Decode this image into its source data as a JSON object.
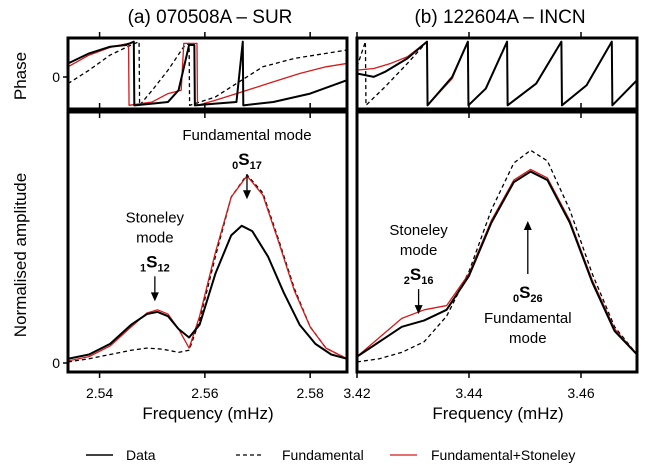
{
  "chart_data": [
    {
      "type": "line",
      "panel_label": "(a)",
      "title": "070508A – SUR",
      "xlabel": "Frequency (mHz)",
      "ylabel": "Normalised amplitude",
      "phase_ylabel": "Phase",
      "xlim": [
        2.534,
        2.587
      ],
      "ylim": [
        0,
        1.18
      ],
      "xticks": [
        "2.54",
        "2.56",
        "2.58"
      ],
      "xtick_values": [
        2.54,
        2.56,
        2.58
      ],
      "ytick_zero": "0",
      "phase_ytick_zero": "0",
      "annotations": [
        {
          "lines": [
            "Stoneley",
            "mode"
          ],
          "mode_pre": "1",
          "mode_base": "S",
          "mode_sub": "12",
          "x": 2.5505,
          "y": 0.29
        },
        {
          "lines": [
            "Fundamental mode"
          ],
          "mode_pre": "0",
          "mode_base": "S",
          "mode_sub": "17",
          "x": 2.568,
          "y": 0.77
        }
      ],
      "amplitude_series": [
        {
          "name": "Data",
          "color": "#000000",
          "style": "solid",
          "points": [
            [
              2.534,
              0.02
            ],
            [
              2.538,
              0.04
            ],
            [
              2.542,
              0.09
            ],
            [
              2.546,
              0.18
            ],
            [
              2.549,
              0.23
            ],
            [
              2.551,
              0.24
            ],
            [
              2.553,
              0.22
            ],
            [
              2.555,
              0.16
            ],
            [
              2.557,
              0.12
            ],
            [
              2.559,
              0.18
            ],
            [
              2.562,
              0.42
            ],
            [
              2.565,
              0.6
            ],
            [
              2.567,
              0.645
            ],
            [
              2.569,
              0.62
            ],
            [
              2.572,
              0.5
            ],
            [
              2.575,
              0.33
            ],
            [
              2.578,
              0.18
            ],
            [
              2.581,
              0.09
            ],
            [
              2.584,
              0.04
            ],
            [
              2.587,
              0.02
            ]
          ]
        },
        {
          "name": "Fundamental",
          "color": "#000000",
          "style": "dashed",
          "points": [
            [
              2.534,
              0.005
            ],
            [
              2.538,
              0.02
            ],
            [
              2.542,
              0.04
            ],
            [
              2.546,
              0.06
            ],
            [
              2.549,
              0.07
            ],
            [
              2.552,
              0.065
            ],
            [
              2.555,
              0.05
            ],
            [
              2.557,
              0.06
            ],
            [
              2.559,
              0.2
            ],
            [
              2.562,
              0.5
            ],
            [
              2.565,
              0.78
            ],
            [
              2.568,
              0.885
            ],
            [
              2.571,
              0.8
            ],
            [
              2.574,
              0.58
            ],
            [
              2.577,
              0.35
            ],
            [
              2.58,
              0.17
            ],
            [
              2.583,
              0.07
            ],
            [
              2.587,
              0.02
            ]
          ]
        },
        {
          "name": "Fundamental+Stoneley",
          "color": "#d61a1a",
          "style": "solid",
          "points": [
            [
              2.534,
              0.01
            ],
            [
              2.538,
              0.03
            ],
            [
              2.542,
              0.08
            ],
            [
              2.546,
              0.17
            ],
            [
              2.549,
              0.235
            ],
            [
              2.551,
              0.25
            ],
            [
              2.553,
              0.23
            ],
            [
              2.555,
              0.16
            ],
            [
              2.557,
              0.07
            ],
            [
              2.559,
              0.22
            ],
            [
              2.562,
              0.52
            ],
            [
              2.565,
              0.78
            ],
            [
              2.568,
              0.88
            ],
            [
              2.571,
              0.79
            ],
            [
              2.574,
              0.57
            ],
            [
              2.577,
              0.34
            ],
            [
              2.58,
              0.17
            ],
            [
              2.583,
              0.07
            ],
            [
              2.587,
              0.02
            ]
          ]
        }
      ],
      "phase_series": [
        {
          "name": "Data",
          "color": "#000000",
          "style": "solid",
          "points": [
            [
              2.534,
              0.3
            ],
            [
              2.538,
              0.6
            ],
            [
              2.542,
              0.8
            ],
            [
              2.545,
              0.85
            ],
            [
              2.5465,
              0.95
            ],
            [
              2.5466,
              -0.95
            ],
            [
              2.55,
              -0.9
            ],
            [
              2.553,
              -0.85
            ],
            [
              2.555,
              -0.5
            ],
            [
              2.557,
              0.85
            ],
            [
              2.558,
              0.85
            ],
            [
              2.5581,
              -0.95
            ],
            [
              2.562,
              -0.9
            ],
            [
              2.566,
              -0.85
            ],
            [
              2.5672,
              0.95
            ],
            [
              2.5673,
              -0.95
            ],
            [
              2.573,
              -0.85
            ],
            [
              2.58,
              -0.6
            ],
            [
              2.587,
              -0.2
            ]
          ]
        },
        {
          "name": "Fundamental",
          "color": "#000000",
          "style": "dashed",
          "points": [
            [
              2.534,
              -0.3
            ],
            [
              2.538,
              0.1
            ],
            [
              2.542,
              0.55
            ],
            [
              2.546,
              0.85
            ],
            [
              2.5475,
              0.95
            ],
            [
              2.5476,
              -0.95
            ],
            [
              2.55,
              -0.5
            ],
            [
              2.553,
              0.1
            ],
            [
              2.556,
              0.8
            ],
            [
              2.557,
              0.9
            ],
            [
              2.5571,
              -0.95
            ],
            [
              2.562,
              -0.7
            ],
            [
              2.566,
              -0.3
            ],
            [
              2.571,
              0.2
            ],
            [
              2.577,
              0.45
            ],
            [
              2.583,
              0.6
            ],
            [
              2.587,
              0.7
            ]
          ]
        },
        {
          "name": "Fundamental+Stoneley",
          "color": "#d61a1a",
          "style": "solid",
          "points": [
            [
              2.534,
              0.2
            ],
            [
              2.538,
              0.55
            ],
            [
              2.542,
              0.78
            ],
            [
              2.5455,
              0.9
            ],
            [
              2.5456,
              -0.95
            ],
            [
              2.55,
              -0.85
            ],
            [
              2.553,
              -0.6
            ],
            [
              2.5555,
              -0.5
            ],
            [
              2.556,
              0.9
            ],
            [
              2.5585,
              0.9
            ],
            [
              2.5586,
              -0.95
            ],
            [
              2.562,
              -0.8
            ],
            [
              2.566,
              -0.6
            ],
            [
              2.572,
              -0.3
            ],
            [
              2.578,
              0.0
            ],
            [
              2.583,
              0.2
            ],
            [
              2.587,
              0.3
            ]
          ]
        }
      ]
    },
    {
      "type": "line",
      "panel_label": "(b)",
      "title": "122604A – INCN",
      "xlabel": "Frequency (mHz)",
      "xlim": [
        3.42,
        3.47
      ],
      "ylim": [
        0,
        1.18
      ],
      "xticks": [
        "3.42",
        "3.44",
        "3.46"
      ],
      "xtick_values": [
        3.42,
        3.44,
        3.46
      ],
      "annotations": [
        {
          "lines": [
            "Stoneley",
            "mode"
          ],
          "mode_pre": "2",
          "mode_base": "S",
          "mode_sub": "16",
          "x": 3.431,
          "y": 0.23
        },
        {
          "lines": [
            "Fundamental",
            "mode"
          ],
          "mode_pre": "0",
          "mode_base": "S",
          "mode_sub": "26",
          "x": 3.4505,
          "y": 0.55
        }
      ],
      "amplitude_series": [
        {
          "name": "Data",
          "color": "#000000",
          "style": "solid",
          "points": [
            [
              3.42,
              0.03
            ],
            [
              3.424,
              0.1
            ],
            [
              3.428,
              0.17
            ],
            [
              3.432,
              0.2
            ],
            [
              3.436,
              0.25
            ],
            [
              3.44,
              0.41
            ],
            [
              3.444,
              0.66
            ],
            [
              3.448,
              0.85
            ],
            [
              3.451,
              0.9
            ],
            [
              3.454,
              0.86
            ],
            [
              3.458,
              0.66
            ],
            [
              3.462,
              0.38
            ],
            [
              3.466,
              0.15
            ],
            [
              3.47,
              0.04
            ]
          ]
        },
        {
          "name": "Fundamental",
          "color": "#000000",
          "style": "dashed",
          "points": [
            [
              3.42,
              0.005
            ],
            [
              3.424,
              0.02
            ],
            [
              3.428,
              0.05
            ],
            [
              3.432,
              0.1
            ],
            [
              3.436,
              0.22
            ],
            [
              3.44,
              0.43
            ],
            [
              3.444,
              0.72
            ],
            [
              3.448,
              0.94
            ],
            [
              3.451,
              1.0
            ],
            [
              3.454,
              0.95
            ],
            [
              3.458,
              0.72
            ],
            [
              3.462,
              0.42
            ],
            [
              3.466,
              0.17
            ],
            [
              3.47,
              0.04
            ]
          ]
        },
        {
          "name": "Fundamental+Stoneley",
          "color": "#d61a1a",
          "style": "solid",
          "points": [
            [
              3.42,
              0.03
            ],
            [
              3.424,
              0.12
            ],
            [
              3.428,
              0.21
            ],
            [
              3.432,
              0.25
            ],
            [
              3.436,
              0.27
            ],
            [
              3.44,
              0.42
            ],
            [
              3.444,
              0.67
            ],
            [
              3.448,
              0.86
            ],
            [
              3.451,
              0.91
            ],
            [
              3.454,
              0.87
            ],
            [
              3.458,
              0.67
            ],
            [
              3.462,
              0.39
            ],
            [
              3.466,
              0.16
            ],
            [
              3.47,
              0.04
            ]
          ]
        }
      ],
      "phase_series": [
        {
          "name": "Data",
          "color": "#000000",
          "style": "solid",
          "points": [
            [
              3.42,
              0.0
            ],
            [
              3.423,
              -0.1
            ],
            [
              3.425,
              0.05
            ],
            [
              3.429,
              0.45
            ],
            [
              3.4325,
              0.95
            ],
            [
              3.4326,
              -0.95
            ],
            [
              3.437,
              -0.1
            ],
            [
              3.4398,
              0.95
            ],
            [
              3.4399,
              -0.95
            ],
            [
              3.443,
              -0.45
            ],
            [
              3.4468,
              0.95
            ],
            [
              3.4469,
              -0.95
            ],
            [
              3.452,
              -0.3
            ],
            [
              3.4565,
              0.95
            ],
            [
              3.4566,
              -0.95
            ],
            [
              3.461,
              -0.35
            ],
            [
              3.4655,
              0.95
            ],
            [
              3.4656,
              -0.95
            ],
            [
              3.47,
              -0.2
            ]
          ]
        },
        {
          "name": "Fundamental",
          "color": "#000000",
          "style": "dashed",
          "points": [
            [
              3.42,
              0.2
            ],
            [
              3.4215,
              0.95
            ],
            [
              3.4216,
              -0.95
            ],
            [
              3.425,
              -0.4
            ],
            [
              3.429,
              0.3
            ],
            [
              3.4325,
              0.95
            ],
            [
              3.4326,
              -0.95
            ],
            [
              3.437,
              -0.1
            ],
            [
              3.4398,
              0.95
            ],
            [
              3.4399,
              -0.95
            ],
            [
              3.443,
              -0.45
            ],
            [
              3.4468,
              0.95
            ],
            [
              3.4469,
              -0.95
            ],
            [
              3.452,
              -0.3
            ],
            [
              3.4565,
              0.95
            ],
            [
              3.4566,
              -0.95
            ],
            [
              3.461,
              -0.35
            ],
            [
              3.4655,
              0.95
            ],
            [
              3.4656,
              -0.95
            ],
            [
              3.47,
              -0.2
            ]
          ]
        },
        {
          "name": "Fundamental+Stoneley",
          "color": "#d61a1a",
          "style": "solid",
          "points": [
            [
              3.42,
              0.1
            ],
            [
              3.423,
              0.15
            ],
            [
              3.426,
              0.3
            ],
            [
              3.429,
              0.5
            ],
            [
              3.4325,
              0.95
            ],
            [
              3.4326,
              -0.95
            ],
            [
              3.437,
              -0.15
            ],
            [
              3.4398,
              0.95
            ],
            [
              3.4399,
              -0.95
            ],
            [
              3.443,
              -0.45
            ],
            [
              3.4468,
              0.95
            ],
            [
              3.4469,
              -0.95
            ],
            [
              3.452,
              -0.3
            ],
            [
              3.4565,
              0.95
            ],
            [
              3.4566,
              -0.95
            ],
            [
              3.461,
              -0.35
            ],
            [
              3.4655,
              0.95
            ],
            [
              3.4656,
              -0.95
            ],
            [
              3.47,
              -0.2
            ]
          ]
        }
      ]
    }
  ],
  "legend": {
    "placement": "bottom",
    "entries": [
      {
        "label": "Data",
        "color": "#000000",
        "style": "solid"
      },
      {
        "label": "Fundamental",
        "color": "#000000",
        "style": "dashed"
      },
      {
        "label": "Fundamental+Stoneley",
        "color": "#d61a1a",
        "style": "solid"
      }
    ]
  }
}
